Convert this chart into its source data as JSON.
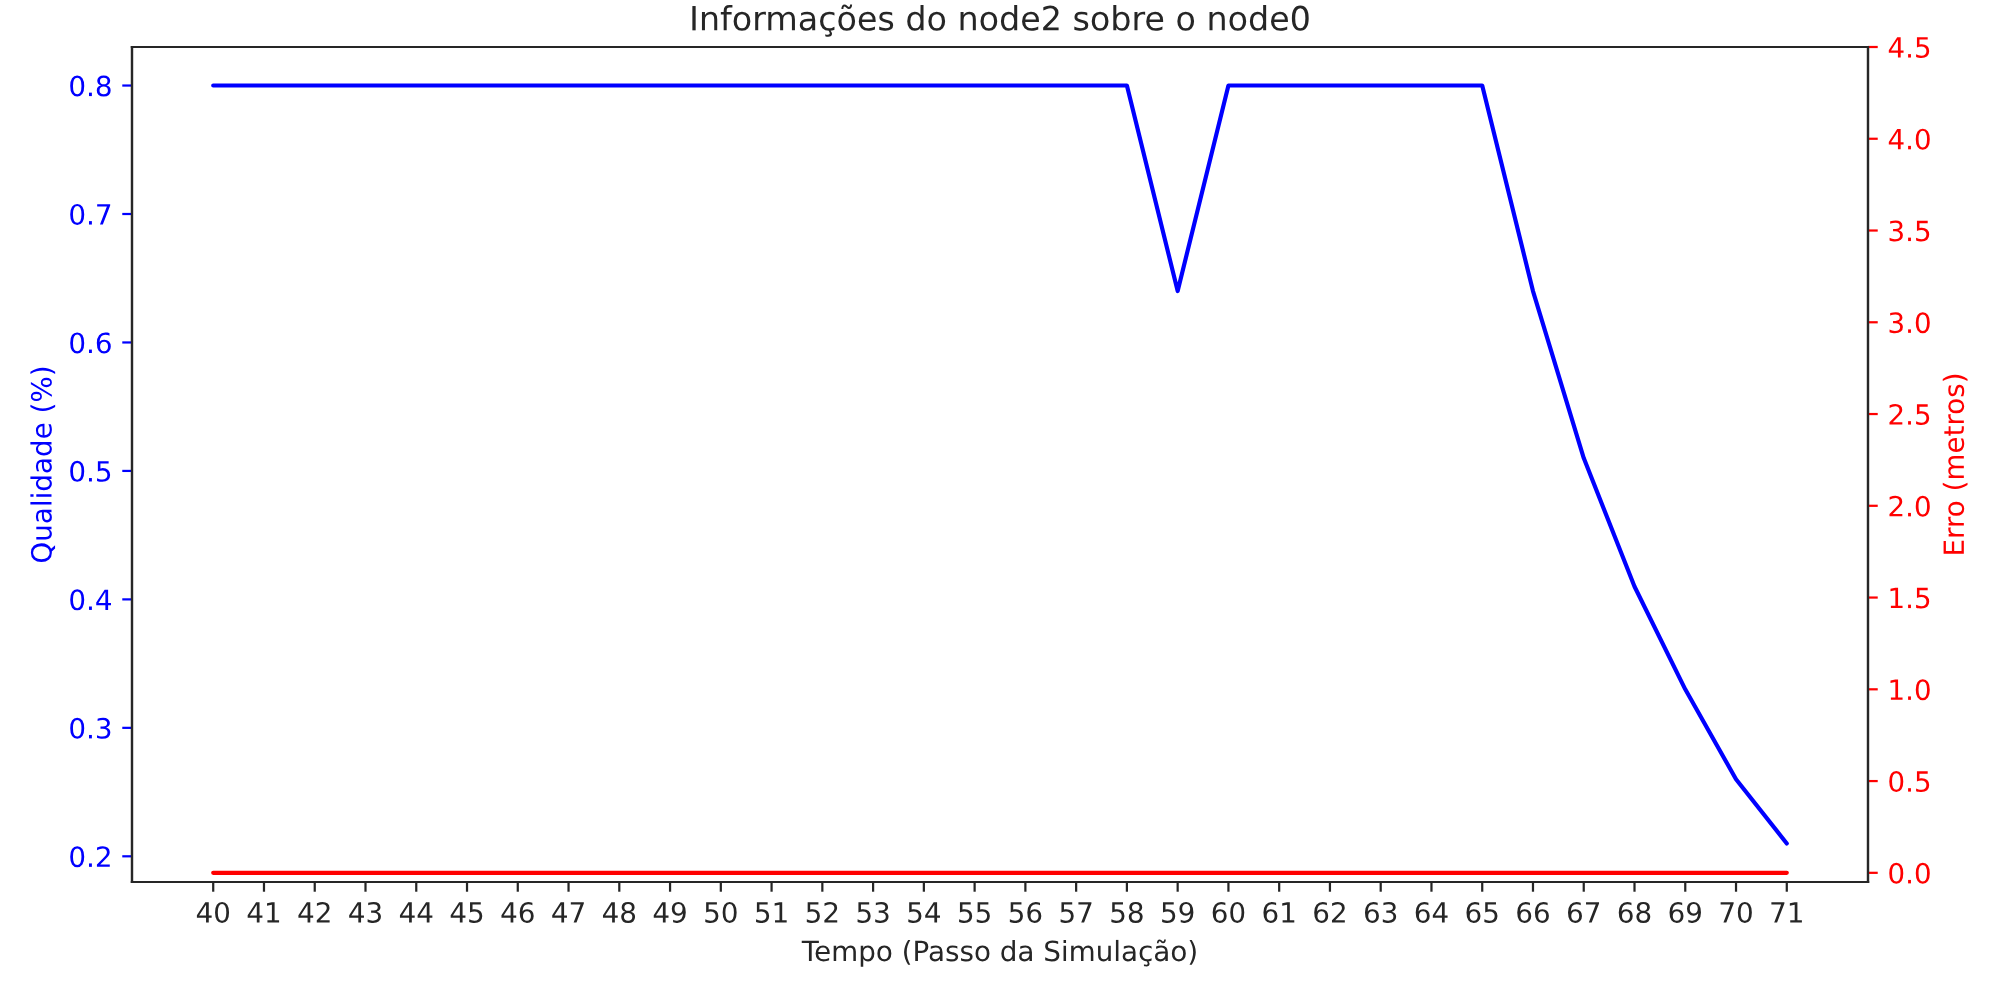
{
  "chart_data": {
    "type": "line",
    "title": "Informações do node2 sobre o node0",
    "xlabel": "Tempo (Passo da Simulação)",
    "ylabel": "Qualidade (%)",
    "y2label": "Erro (metros)",
    "x": [
      40,
      41,
      42,
      43,
      44,
      45,
      46,
      47,
      48,
      49,
      50,
      51,
      52,
      53,
      54,
      55,
      56,
      57,
      58,
      59,
      60,
      61,
      62,
      63,
      64,
      65,
      66,
      67,
      68,
      69,
      70,
      71
    ],
    "series": [
      {
        "color": "#0000ff",
        "values": [
          0.8,
          0.8,
          0.8,
          0.8,
          0.8,
          0.8,
          0.8,
          0.8,
          0.8,
          0.8,
          0.8,
          0.8,
          0.8,
          0.8,
          0.8,
          0.8,
          0.8,
          0.8,
          0.8,
          0.64,
          0.8,
          0.8,
          0.8,
          0.8,
          0.8,
          0.8,
          0.64,
          0.51,
          0.41,
          0.33,
          0.26,
          0.21
        ]
      },
      {
        "color": "#ff0000",
        "axis": "y2",
        "values": [
          0,
          0,
          0,
          0,
          0,
          0,
          0,
          0,
          0,
          0,
          0,
          0,
          0,
          0,
          0,
          0,
          0,
          0,
          0,
          0,
          0,
          0,
          0,
          0,
          0,
          0,
          0,
          0,
          0,
          0,
          0,
          0
        ]
      }
    ],
    "xlim": [
      38.4,
      72.6
    ],
    "xticks": [
      40,
      41,
      42,
      43,
      44,
      45,
      46,
      47,
      48,
      49,
      50,
      51,
      52,
      53,
      54,
      55,
      56,
      57,
      58,
      59,
      60,
      61,
      62,
      63,
      64,
      65,
      66,
      67,
      68,
      69,
      70,
      71
    ],
    "ylim": [
      0.18,
      0.83
    ],
    "yticks": [
      0.2,
      0.3,
      0.4,
      0.5,
      0.6,
      0.7,
      0.8
    ],
    "y2lim": [
      -0.05,
      4.5
    ],
    "y2ticks": [
      {
        "value": 0,
        "label": "0.0"
      },
      0.5,
      {
        "value": 1,
        "label": "1.0"
      },
      1.5,
      {
        "value": 2,
        "label": "2.0"
      },
      2.5,
      {
        "value": 3,
        "label": "3.0"
      },
      3.5,
      {
        "value": 4,
        "label": "4.0"
      },
      4.5
    ],
    "grid": false,
    "legend": false
  }
}
